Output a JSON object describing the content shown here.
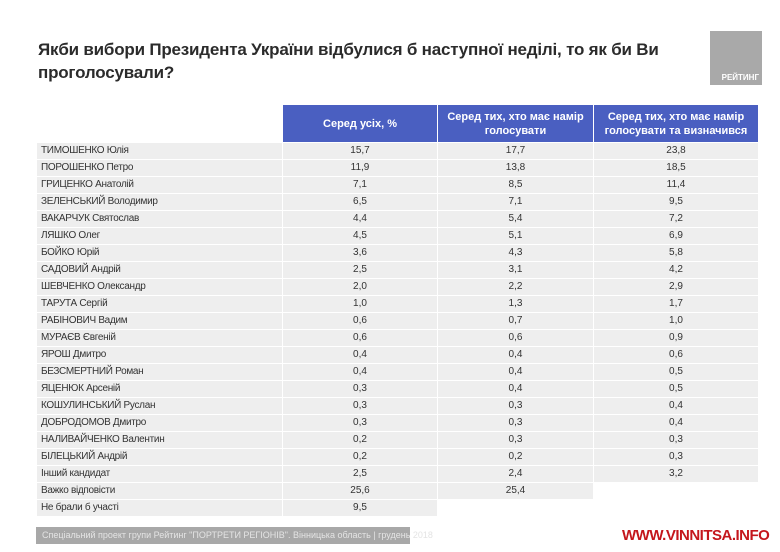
{
  "title": "Якби вибори Президента України відбулися б наступної неділі, то як би Ви проголосували?",
  "logo_text": "РЕЙТИНГ",
  "columns": [
    "Серед усіх, %",
    "Серед тих, хто має намір голосувати",
    "Серед тих, хто має намір голосувати та визначився"
  ],
  "rows": [
    {
      "name": "ТИМОШЕНКО Юлія",
      "all": "15,7",
      "intend": "17,7",
      "decided": "23,8"
    },
    {
      "name": "ПОРОШЕНКО Петро",
      "all": "11,9",
      "intend": "13,8",
      "decided": "18,5"
    },
    {
      "name": "ГРИЦЕНКО Анатолій",
      "all": "7,1",
      "intend": "8,5",
      "decided": "11,4"
    },
    {
      "name": "ЗЕЛЕНСЬКИЙ Володимир",
      "all": "6,5",
      "intend": "7,1",
      "decided": "9,5"
    },
    {
      "name": "ВАКАРЧУК Святослав",
      "all": "4,4",
      "intend": "5,4",
      "decided": "7,2"
    },
    {
      "name": "ЛЯШКО Олег",
      "all": "4,5",
      "intend": "5,1",
      "decided": "6,9"
    },
    {
      "name": "БОЙКО Юрій",
      "all": "3,6",
      "intend": "4,3",
      "decided": "5,8"
    },
    {
      "name": "САДОВИЙ Андрій",
      "all": "2,5",
      "intend": "3,1",
      "decided": "4,2"
    },
    {
      "name": "ШЕВЧЕНКО Олександр",
      "all": "2,0",
      "intend": "2,2",
      "decided": "2,9"
    },
    {
      "name": "ТАРУТА Сергій",
      "all": "1,0",
      "intend": "1,3",
      "decided": "1,7"
    },
    {
      "name": "РАБІНОВИЧ Вадим",
      "all": "0,6",
      "intend": "0,7",
      "decided": "1,0"
    },
    {
      "name": "МУРАЄВ Євгеній",
      "all": "0,6",
      "intend": "0,6",
      "decided": "0,9"
    },
    {
      "name": "ЯРОШ Дмитро",
      "all": "0,4",
      "intend": "0,4",
      "decided": "0,6"
    },
    {
      "name": "БЕЗСМЕРТНИЙ Роман",
      "all": "0,4",
      "intend": "0,4",
      "decided": "0,5"
    },
    {
      "name": "ЯЦЕНЮК Арсеній",
      "all": "0,3",
      "intend": "0,4",
      "decided": "0,5"
    },
    {
      "name": "КОШУЛИНСЬКИЙ Руслан",
      "all": "0,3",
      "intend": "0,3",
      "decided": "0,4"
    },
    {
      "name": "ДОБРОДОМОВ Дмитро",
      "all": "0,3",
      "intend": "0,3",
      "decided": "0,4"
    },
    {
      "name": "НАЛИВАЙЧЕНКО Валентин",
      "all": "0,2",
      "intend": "0,3",
      "decided": "0,3"
    },
    {
      "name": "БІЛЕЦЬКИЙ Андрій",
      "all": "0,2",
      "intend": "0,2",
      "decided": "0,3"
    },
    {
      "name": "Інший кандидат",
      "all": "2,5",
      "intend": "2,4",
      "decided": "3,2"
    },
    {
      "name": "Важко відповісти",
      "all": "25,6",
      "intend": "25,4",
      "decided": null
    },
    {
      "name": "Не брали б участі",
      "all": "9,5",
      "intend": null,
      "decided": null
    }
  ],
  "footer": "Спеціальний проект групи Рейтинг \"ПОРТРЕТИ РЕГІОНІВ\". Вінницька область | грудень 2018",
  "watermark": "WWW.VINNITSA.INFO",
  "colors": {
    "header": "#4a5fc1",
    "row": "#eeeeee",
    "watermark": "#c4161c"
  }
}
